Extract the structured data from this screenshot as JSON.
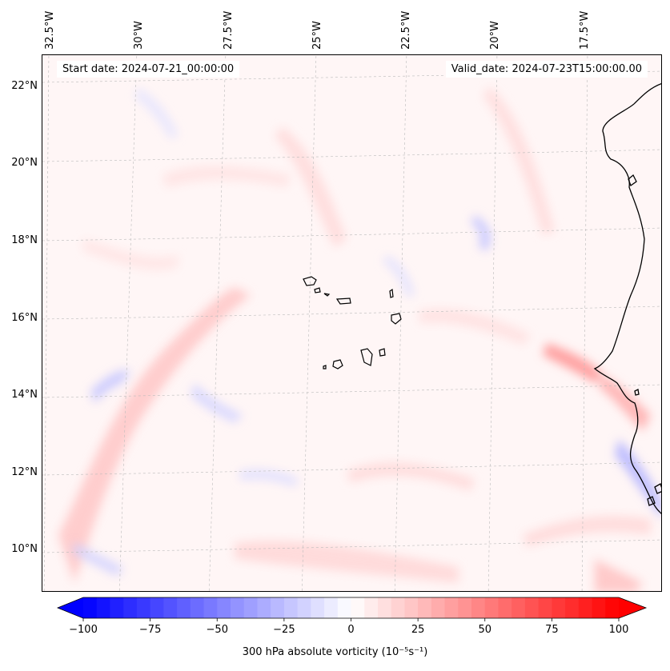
{
  "map": {
    "start_label": "Start date: 2024-07-21_00:00:00",
    "valid_label": "Valid_date: 2024-07-23T15:00:00.00",
    "lon_labels": [
      "32.5°W",
      "30°W",
      "27.5°W",
      "25°W",
      "22.5°W",
      "20°W",
      "17.5°W"
    ],
    "lat_labels": [
      "22°N",
      "20°N",
      "18°N",
      "16°N",
      "14°N",
      "12°N",
      "10°N"
    ],
    "variable": "300 hPa absolute vorticity",
    "units": "(10⁻⁵s⁻¹)",
    "regions": [
      "Cape Verde Islands",
      "West African coast"
    ]
  },
  "colorbar": {
    "min": -100,
    "max": 100,
    "tick_labels": [
      "−100",
      "−75",
      "−50",
      "−25",
      "0",
      "25",
      "50",
      "75",
      "100"
    ],
    "tick_values": [
      -100,
      -75,
      -50,
      -25,
      0,
      25,
      50,
      75,
      100
    ],
    "colormap": "bwr",
    "color_low": "#0000ff",
    "color_mid": "#ffffff",
    "color_high": "#ff0000",
    "label": "300 hPa absolute vorticity (10⁻⁵s⁻¹)"
  }
}
